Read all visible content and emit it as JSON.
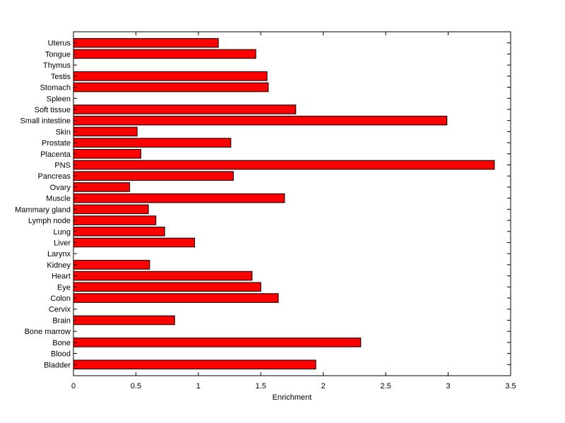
{
  "chart_data": {
    "type": "bar",
    "orientation": "horizontal",
    "categories": [
      "Bladder",
      "Blood",
      "Bone",
      "Bone marrow",
      "Brain",
      "Cervix",
      "Colon",
      "Eye",
      "Heart",
      "Kidney",
      "Larynx",
      "Liver",
      "Lung",
      "Lymph node",
      "Mammary gland",
      "Muscle",
      "Ovary",
      "Pancreas",
      "PNS",
      "Placenta",
      "Prostate",
      "Skin",
      "Small intestine",
      "Soft tissue",
      "Spleen",
      "Stomach",
      "Testis",
      "Thymus",
      "Tongue",
      "Uterus"
    ],
    "values": [
      1.94,
      0,
      2.3,
      0,
      0.81,
      0,
      1.64,
      1.5,
      1.43,
      0.61,
      0,
      0.97,
      0.73,
      0.66,
      0.6,
      1.69,
      0.45,
      1.28,
      3.37,
      0.54,
      1.26,
      0.51,
      2.99,
      1.78,
      0,
      1.56,
      1.55,
      0,
      1.46,
      1.16
    ],
    "xlabel": "Enrichment",
    "ylabel": "",
    "title": "",
    "xlim": [
      0,
      3.5
    ],
    "xticks": [
      "0",
      "0.5",
      "1",
      "1.5",
      "2",
      "2.5",
      "3",
      "3.5"
    ],
    "grid": false,
    "bar_color": "#ff0000",
    "bar_edge_color": "#000000"
  }
}
